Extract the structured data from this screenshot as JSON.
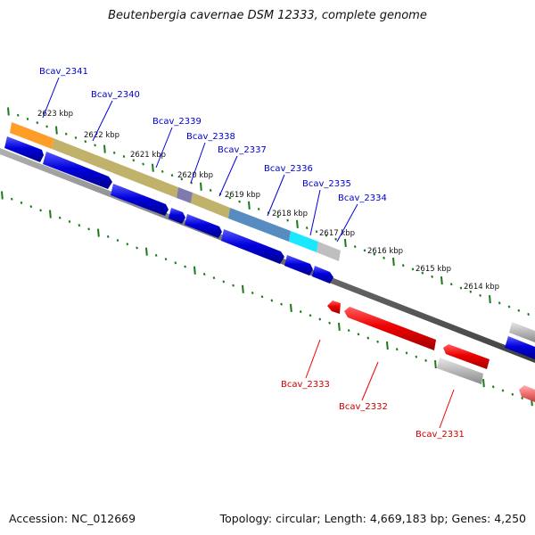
{
  "title": "Beutenbergia cavernae DSM 12333, complete genome",
  "accession_text": "Accession: NC_012669",
  "topology_text": "Topology: circular; Length: 4,669,183 bp; Genes: 4,250",
  "colors": {
    "forward_gene": "#0000dd",
    "reverse_gene": "#ee0000",
    "forward_label": "#0000cc",
    "reverse_label": "#cc0000",
    "tick": "#1a7a1a",
    "backbone": "#808080",
    "unknown_gene": "#b8b8b8"
  },
  "ruler_labels": [
    "2623 kbp",
    "2622 kbp",
    "2621 kbp",
    "2620 kbp",
    "2619 kbp",
    "2618 kbp",
    "2617 kbp",
    "2616 kbp",
    "2615 kbp",
    "2614 kbp"
  ],
  "forward_genes": [
    "Bcav_2341",
    "Bcav_2340",
    "Bcav_2339",
    "Bcav_2338",
    "Bcav_2337",
    "Bcav_2336",
    "Bcav_2335",
    "Bcav_2334"
  ],
  "reverse_genes": [
    "Bcav_2333",
    "Bcav_2332",
    "Bcav_2331"
  ]
}
